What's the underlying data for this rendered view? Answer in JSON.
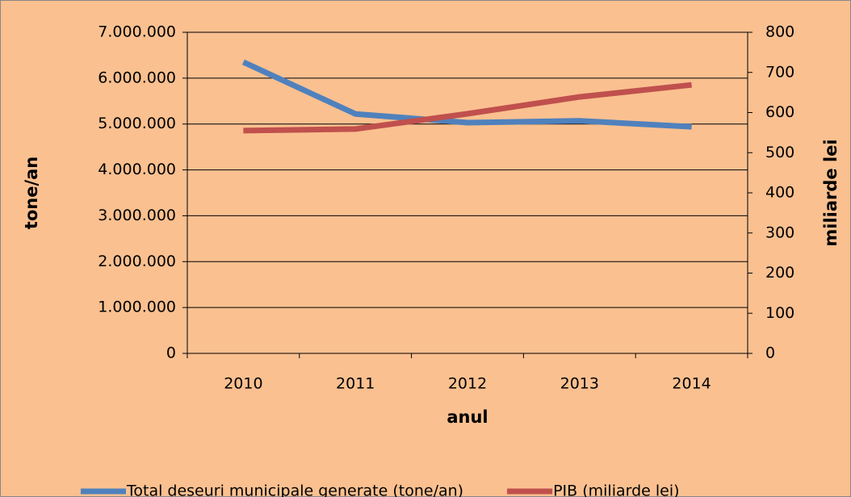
{
  "chart_data": {
    "type": "line",
    "categories": [
      "2010",
      "2011",
      "2012",
      "2013",
      "2014"
    ],
    "series": [
      {
        "name": "Total deșeuri municipale generate (tone/an)",
        "color": "#4f81bd",
        "values": [
          6350000,
          5220000,
          5030000,
          5070000,
          4940000
        ]
      },
      {
        "name": "PIB (miliarde lei)",
        "color": "#c0504d",
        "axis": "y2",
        "values": [
          555,
          559,
          597,
          639,
          669
        ]
      }
    ],
    "ylabel": "tone/an",
    "y2label": "miliarde lei",
    "xlabel": "anul",
    "ylim": [
      0,
      7000000
    ],
    "yticks": [
      0,
      {
        "value": 1000000,
        "label": "1.000.000"
      },
      {
        "value": 2000000,
        "label": "2.000.000"
      },
      {
        "value": 3000000,
        "label": "3.000.000"
      },
      {
        "value": 4000000,
        "label": "4.000.000"
      },
      {
        "value": 5000000,
        "label": "5.000.000"
      },
      {
        "value": 6000000,
        "label": "6.000.000"
      },
      {
        "value": 7000000,
        "label": "7.000.000"
      }
    ],
    "y2lim": [
      0,
      800
    ],
    "y2ticks": [
      0,
      100,
      200,
      300,
      400,
      500,
      600,
      700,
      800
    ],
    "grid": true,
    "legend": "bottom"
  }
}
